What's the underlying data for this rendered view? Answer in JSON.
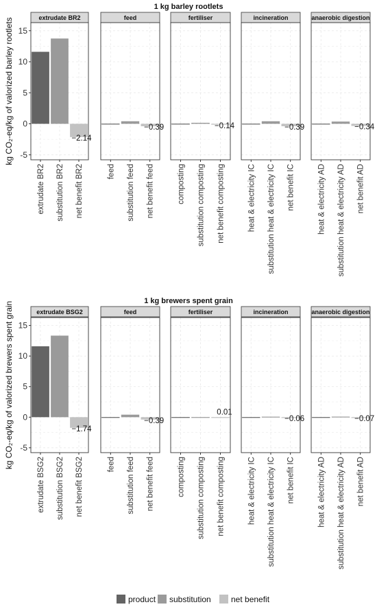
{
  "chart_data": [
    {
      "type": "bar",
      "title": "1 kg barley rootlets",
      "ylabel": "kg CO₂-eq/kg of valorized barley rootlets",
      "ylim": [
        -5.8,
        16.3
      ],
      "yticks": [
        -5,
        0,
        5,
        10,
        15
      ],
      "grid": true,
      "facets": [
        {
          "name": "extrudate BR2",
          "bars": [
            {
              "category": "extrudate BR2",
              "type": "product",
              "value": 11.6,
              "label": ""
            },
            {
              "category": "substitution BR2",
              "type": "substitution",
              "value": 13.74,
              "label": ""
            },
            {
              "category": "net benefit BR2",
              "type": "net benefit",
              "value": -2.14,
              "label": "−2.14"
            }
          ]
        },
        {
          "name": "feed",
          "bars": [
            {
              "category": "feed",
              "type": "product",
              "value": 0.02,
              "label": ""
            },
            {
              "category": "substitution feed",
              "type": "substitution",
              "value": 0.41,
              "label": ""
            },
            {
              "category": "net benefit feed",
              "type": "net benefit",
              "value": -0.39,
              "label": "−0.39"
            }
          ]
        },
        {
          "name": "fertiliser",
          "bars": [
            {
              "category": "composting",
              "type": "product",
              "value": 0.02,
              "label": ""
            },
            {
              "category": "substitution composting",
              "type": "substitution",
              "value": 0.16,
              "label": ""
            },
            {
              "category": "net benefit composting",
              "type": "net benefit",
              "value": -0.14,
              "label": "−0.14"
            }
          ]
        },
        {
          "name": "incineration",
          "bars": [
            {
              "category": "heat & electricity IC",
              "type": "product",
              "value": 0.02,
              "label": ""
            },
            {
              "category": "substitution heat & electricity IC",
              "type": "substitution",
              "value": 0.41,
              "label": ""
            },
            {
              "category": "net benefit IC",
              "type": "net benefit",
              "value": -0.39,
              "label": "−0.39"
            }
          ]
        },
        {
          "name": "anaerobic digestion",
          "bars": [
            {
              "category": "heat & electricity AD",
              "type": "product",
              "value": 0.02,
              "label": ""
            },
            {
              "category": "substitution heat & electricity AD",
              "type": "substitution",
              "value": 0.36,
              "label": ""
            },
            {
              "category": "net benefit AD",
              "type": "net benefit",
              "value": -0.34,
              "label": "−0.34"
            }
          ]
        }
      ]
    },
    {
      "type": "bar",
      "title": "1 kg brewers spent grain",
      "ylabel": "kg CO₂-eq/kg of valorized brewers spent grain",
      "ylim": [
        -5.8,
        16.3
      ],
      "yticks": [
        -5,
        0,
        5,
        10,
        15
      ],
      "grid": true,
      "facets": [
        {
          "name": "extrudate BSG2",
          "bars": [
            {
              "category": "extrudate BSG2",
              "type": "product",
              "value": 11.6,
              "label": ""
            },
            {
              "category": "substitution BSG2",
              "type": "substitution",
              "value": 13.34,
              "label": ""
            },
            {
              "category": "net benefit BSG2",
              "type": "net benefit",
              "value": -1.74,
              "label": "−1.74"
            }
          ]
        },
        {
          "name": "feed",
          "bars": [
            {
              "category": "feed",
              "type": "product",
              "value": 0.02,
              "label": ""
            },
            {
              "category": "substitution feed",
              "type": "substitution",
              "value": 0.41,
              "label": ""
            },
            {
              "category": "net benefit feed",
              "type": "net benefit",
              "value": -0.39,
              "label": "−0.39"
            }
          ]
        },
        {
          "name": "fertiliser",
          "bars": [
            {
              "category": "composting",
              "type": "product",
              "value": 0.02,
              "label": ""
            },
            {
              "category": "substitution composting",
              "type": "substitution",
              "value": 0.02,
              "label": ""
            },
            {
              "category": "net benefit composting",
              "type": "net benefit",
              "value": 0.01,
              "label": "0.01"
            }
          ]
        },
        {
          "name": "incineration",
          "bars": [
            {
              "category": "heat & electricity IC",
              "type": "product",
              "value": 0.02,
              "label": ""
            },
            {
              "category": "substitution heat & electricity IC",
              "type": "substitution",
              "value": 0.08,
              "label": ""
            },
            {
              "category": "net benefit IC",
              "type": "net benefit",
              "value": -0.06,
              "label": "−0.06"
            }
          ]
        },
        {
          "name": "anaerobic digestion",
          "bars": [
            {
              "category": "heat & electricity AD",
              "type": "product",
              "value": 0.02,
              "label": ""
            },
            {
              "category": "substitution heat & electricity AD",
              "type": "substitution",
              "value": 0.09,
              "label": ""
            },
            {
              "category": "net benefit AD",
              "type": "net benefit",
              "value": -0.07,
              "label": "−0.07"
            }
          ]
        }
      ]
    }
  ],
  "legend": {
    "position": "bottom",
    "items": [
      {
        "key": "product",
        "label": "product",
        "color": "#646464"
      },
      {
        "key": "substitution",
        "label": "substitution",
        "color": "#9a9a9a"
      },
      {
        "key": "net benefit",
        "label": "net benefit",
        "color": "#c2c2c2"
      }
    ]
  },
  "colors": {
    "product": "#646464",
    "substitution": "#9a9a9a",
    "net benefit": "#c2c2c2",
    "strip_fill": "#d9d9d9",
    "grid": "#ebebeb"
  }
}
